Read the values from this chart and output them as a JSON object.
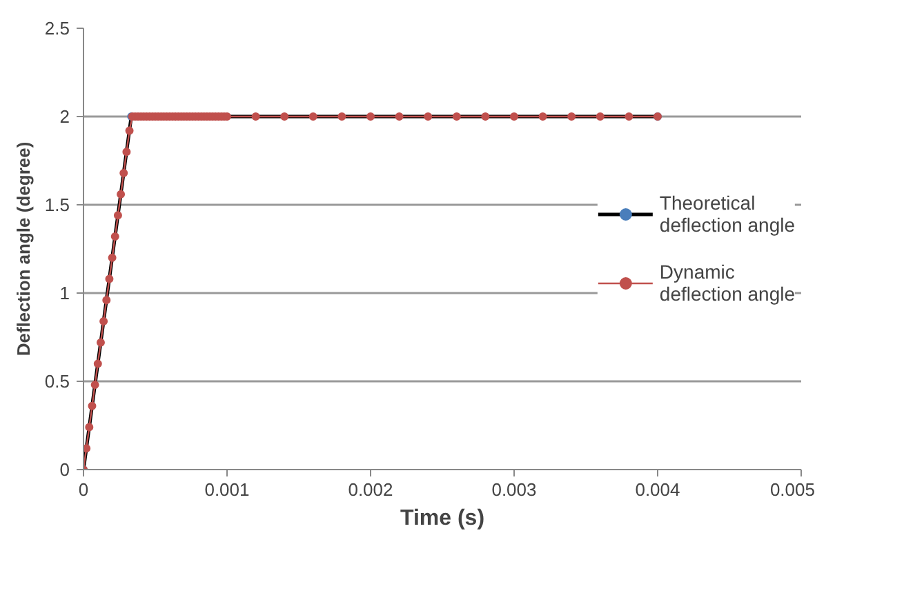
{
  "chart_data": {
    "type": "line",
    "xlabel": "Time (s)",
    "ylabel": "Deflection angle (degree)",
    "xlim": [
      0,
      0.005
    ],
    "xticks": [
      0,
      0.001,
      0.002,
      0.003,
      0.004,
      0.005
    ],
    "ylim": [
      0,
      2.5
    ],
    "yticks": [
      0,
      0.5,
      1,
      1.5,
      2,
      2.5
    ],
    "grid": "y",
    "legend": "right",
    "series": [
      {
        "name": "Theoretical deflection angle",
        "color": "#4a7ebb",
        "marker": "circle",
        "x": [
          0,
          0.000333,
          0.004
        ],
        "values": [
          0,
          2,
          2
        ]
      },
      {
        "name": "Dynamic deflection angle",
        "color": "#c0504d",
        "marker": "circle",
        "x": [
          0,
          2e-05,
          4e-05,
          6e-05,
          8e-05,
          0.0001,
          0.00012,
          0.00014,
          0.00016,
          0.00018,
          0.0002,
          0.00022,
          0.00024,
          0.00026,
          0.00028,
          0.0003,
          0.00032,
          0.00034,
          0.00036,
          0.00038,
          0.0004,
          0.00042,
          0.00044,
          0.00046,
          0.00048,
          0.0005,
          0.00052,
          0.00054,
          0.00056,
          0.00058,
          0.0006,
          0.00062,
          0.00064,
          0.00066,
          0.00068,
          0.0007,
          0.00072,
          0.00074,
          0.00076,
          0.00078,
          0.0008,
          0.00082,
          0.00084,
          0.00086,
          0.00088,
          0.0009,
          0.00092,
          0.00094,
          0.00096,
          0.00098,
          0.001,
          0.0012,
          0.0014,
          0.0016,
          0.0018,
          0.002,
          0.0022,
          0.0024,
          0.0026,
          0.0028,
          0.003,
          0.0032,
          0.0034,
          0.0036,
          0.0038,
          0.004
        ],
        "values": [
          0,
          0.12,
          0.24,
          0.36,
          0.48,
          0.6,
          0.72,
          0.84,
          0.96,
          1.08,
          1.2,
          1.32,
          1.44,
          1.56,
          1.68,
          1.8,
          1.92,
          2,
          2,
          2,
          2,
          2,
          2,
          2,
          2,
          2,
          2,
          2,
          2,
          2,
          2,
          2,
          2,
          2,
          2,
          2,
          2,
          2,
          2,
          2,
          2,
          2,
          2,
          2,
          2,
          2,
          2,
          2,
          2,
          2,
          2,
          2,
          2,
          2,
          2,
          2,
          2,
          2,
          2,
          2,
          2,
          2,
          2,
          2,
          2,
          2
        ]
      }
    ]
  }
}
